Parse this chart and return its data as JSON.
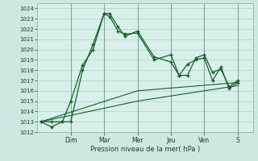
{
  "background_color": "#cce8e0",
  "plot_bg_color": "#d8f0ea",
  "grid_color": "#b0d4c8",
  "line_color": "#1a5c28",
  "marker_color": "#1a5c28",
  "ylabel": "Pression niveau de la mer( hPa )",
  "ylim": [
    1012,
    1024.5
  ],
  "yticks": [
    1012,
    1013,
    1014,
    1015,
    1016,
    1017,
    1018,
    1019,
    1020,
    1021,
    1022,
    1023,
    1024
  ],
  "day_labels": [
    "Dim",
    "Mar",
    "Mer",
    "Jeu",
    "Ven",
    "S"
  ],
  "day_positions": [
    48,
    96,
    144,
    192,
    240,
    288
  ],
  "xlim": [
    0,
    310
  ],
  "series1": {
    "x": [
      5,
      20,
      36,
      48,
      65,
      80,
      96,
      104,
      116,
      126,
      144,
      168,
      192,
      204,
      216,
      228,
      240,
      252,
      264,
      276,
      288
    ],
    "y": [
      1013.0,
      1012.5,
      1013.0,
      1013.0,
      1018.0,
      1020.5,
      1023.5,
      1023.2,
      1021.8,
      1021.5,
      1021.6,
      1019.0,
      1019.5,
      1017.5,
      1017.5,
      1019.2,
      1019.5,
      1017.8,
      1018.1,
      1016.4,
      1017.0
    ]
  },
  "series2": {
    "x": [
      5,
      20,
      36,
      48,
      65,
      80,
      96,
      104,
      116,
      126,
      144,
      168,
      192,
      204,
      216,
      228,
      240,
      252,
      264,
      276,
      288
    ],
    "y": [
      1013.0,
      1013.0,
      1013.0,
      1015.0,
      1018.5,
      1020.0,
      1023.5,
      1023.5,
      1022.2,
      1021.3,
      1021.8,
      1019.3,
      1018.8,
      1017.5,
      1018.6,
      1019.0,
      1019.2,
      1017.0,
      1018.3,
      1016.2,
      1016.8
    ]
  },
  "trend1": {
    "x": [
      5,
      144,
      288
    ],
    "y": [
      1013.0,
      1016.0,
      1016.8
    ]
  },
  "trend2": {
    "x": [
      5,
      144,
      288
    ],
    "y": [
      1013.0,
      1015.0,
      1016.5
    ]
  },
  "figsize": [
    3.2,
    2.0
  ],
  "dpi": 100
}
